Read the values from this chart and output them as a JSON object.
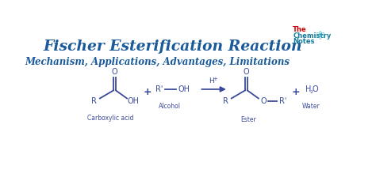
{
  "background_color": "#ffffff",
  "title": "Fischer Esterification Reaction",
  "title_color": "#1a5a9a",
  "title_fontsize": 13.5,
  "subtitle": "Mechanism, Applications, Advantages, Limitations",
  "subtitle_color": "#1a5a9a",
  "subtitle_fontsize": 8.5,
  "logo_the": "The",
  "logo_chemistry": "Chemistry",
  "logo_notes": "Notes",
  "logo_color_the": "#cc0000",
  "logo_color_chem": "#1a7a9a",
  "logo_color_notes": "#1a7a9a",
  "chem_blue": "#3a4a9a",
  "label_fontsize": 5.5,
  "formula_fontsize": 7,
  "reactant1_label": "Carboxylic acid",
  "reactant2_label": "Alcohol",
  "product1_label": "Ester",
  "product2_label": "Water"
}
